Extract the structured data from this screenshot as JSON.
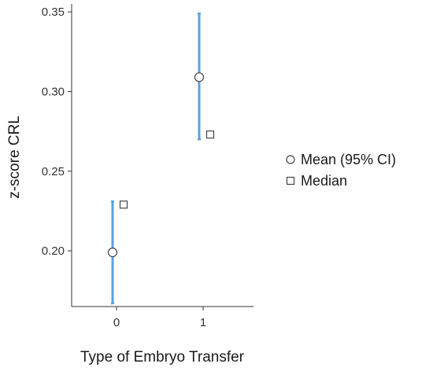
{
  "chart_data": {
    "type": "scatter",
    "xlabel": "Type of Embryo Transfer",
    "ylabel": "z-score CRL",
    "categories": [
      "0",
      "1"
    ],
    "ylim": [
      0.165,
      0.355
    ],
    "yticks": [
      "0.20",
      "0.25",
      "0.30",
      "0.35"
    ],
    "grid": false,
    "legend_position": "right",
    "series": [
      {
        "name": "Mean (95% CI)",
        "marker": "circle",
        "values": [
          0.199,
          0.309
        ],
        "ci_lower": [
          0.167,
          0.27
        ],
        "ci_upper": [
          0.231,
          0.349
        ],
        "error_bar_color": "#5aa1e3"
      },
      {
        "name": "Median",
        "marker": "square",
        "values": [
          0.229,
          0.273
        ]
      }
    ]
  }
}
